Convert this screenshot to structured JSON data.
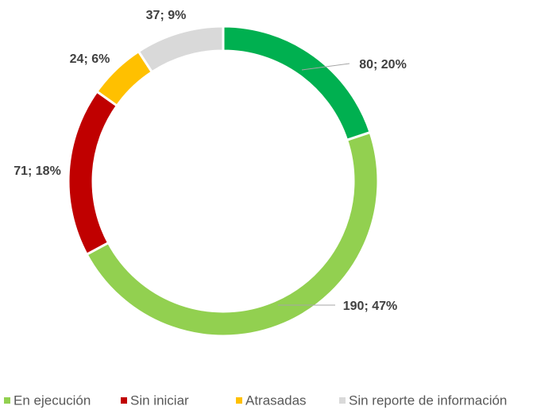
{
  "chart_data": {
    "type": "donut",
    "categories": [
      null,
      "En ejecución",
      "Sin iniciar",
      "Atrasadas",
      "Sin reporte de  información"
    ],
    "values": [
      80,
      190,
      71,
      24,
      37
    ],
    "value_labels": [
      "80; 20%",
      "190; 47%",
      "71; 18%",
      "24; 6%",
      "37; 9%"
    ],
    "colors": [
      "#00b050",
      "#92d050",
      "#c00000",
      "#ffc000",
      "#d9d9d9"
    ],
    "legend": "bottom"
  }
}
